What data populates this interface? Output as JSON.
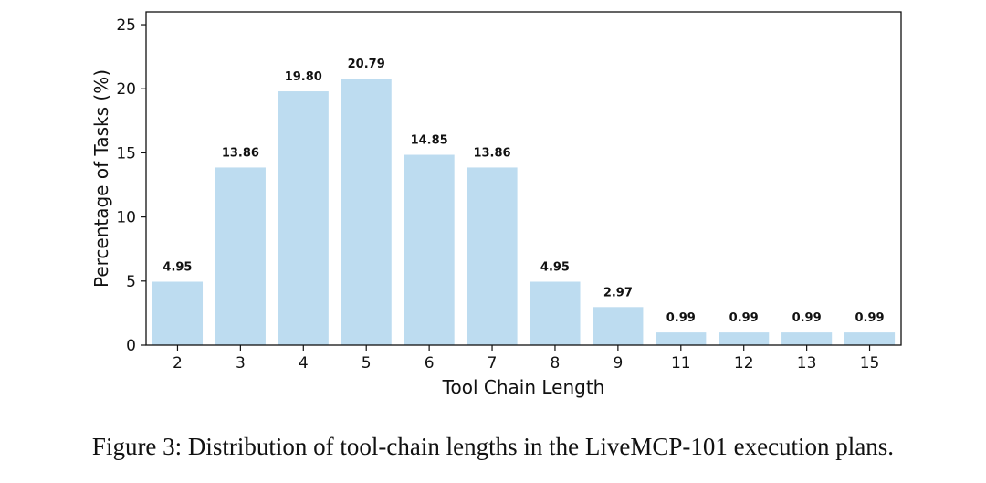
{
  "chart_data": {
    "type": "bar",
    "categories": [
      "2",
      "3",
      "4",
      "5",
      "6",
      "7",
      "8",
      "9",
      "11",
      "12",
      "13",
      "15"
    ],
    "values": [
      4.95,
      13.86,
      19.8,
      20.79,
      14.85,
      13.86,
      4.95,
      2.97,
      0.99,
      0.99,
      0.99,
      0.99
    ],
    "data_labels": [
      "4.95",
      "13.86",
      "19.80",
      "20.79",
      "14.85",
      "13.86",
      "4.95",
      "2.97",
      "0.99",
      "0.99",
      "0.99",
      "0.99"
    ],
    "xlabel": "Tool Chain Length",
    "ylabel": "Percentage of Tasks (%)",
    "ylim": [
      0,
      26
    ],
    "yticks": [
      0,
      5,
      10,
      15,
      20,
      25
    ],
    "grid": false,
    "bar_color": "#bddcf0"
  },
  "caption": "Figure 3: Distribution of tool-chain lengths in the LiveMCP-101 execution plans."
}
